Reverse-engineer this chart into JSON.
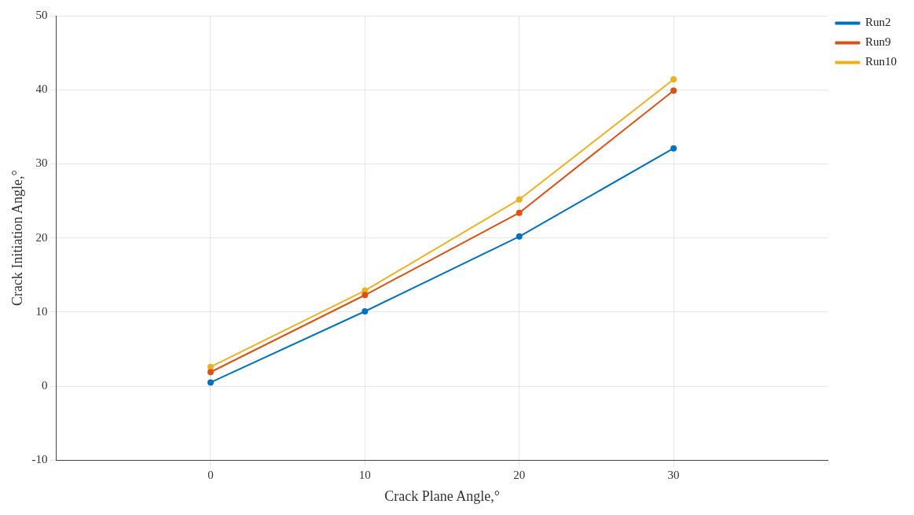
{
  "chart_data": {
    "type": "line",
    "xlabel": "Crack Plane Angle,°",
    "ylabel": "Crack Initiation Angle,°",
    "x": [
      0,
      10,
      20,
      30
    ],
    "series": [
      {
        "name": "Run2",
        "color": "#0072bd",
        "values": [
          0.5,
          10.1,
          20.2,
          32.1
        ]
      },
      {
        "name": "Run9",
        "color": "#d95319",
        "values": [
          1.9,
          12.3,
          23.4,
          39.9
        ]
      },
      {
        "name": "Run10",
        "color": "#edb120",
        "values": [
          2.6,
          12.9,
          25.2,
          41.4
        ]
      }
    ],
    "xlim": [
      -10,
      40
    ],
    "xticks": [
      0,
      10,
      20,
      30
    ],
    "ylim": [
      -10,
      50
    ],
    "yticks": [
      -10,
      0,
      10,
      20,
      30,
      40,
      50
    ],
    "grid": true,
    "legend": "top right",
    "marker": "circle",
    "line_style": "solid"
  }
}
